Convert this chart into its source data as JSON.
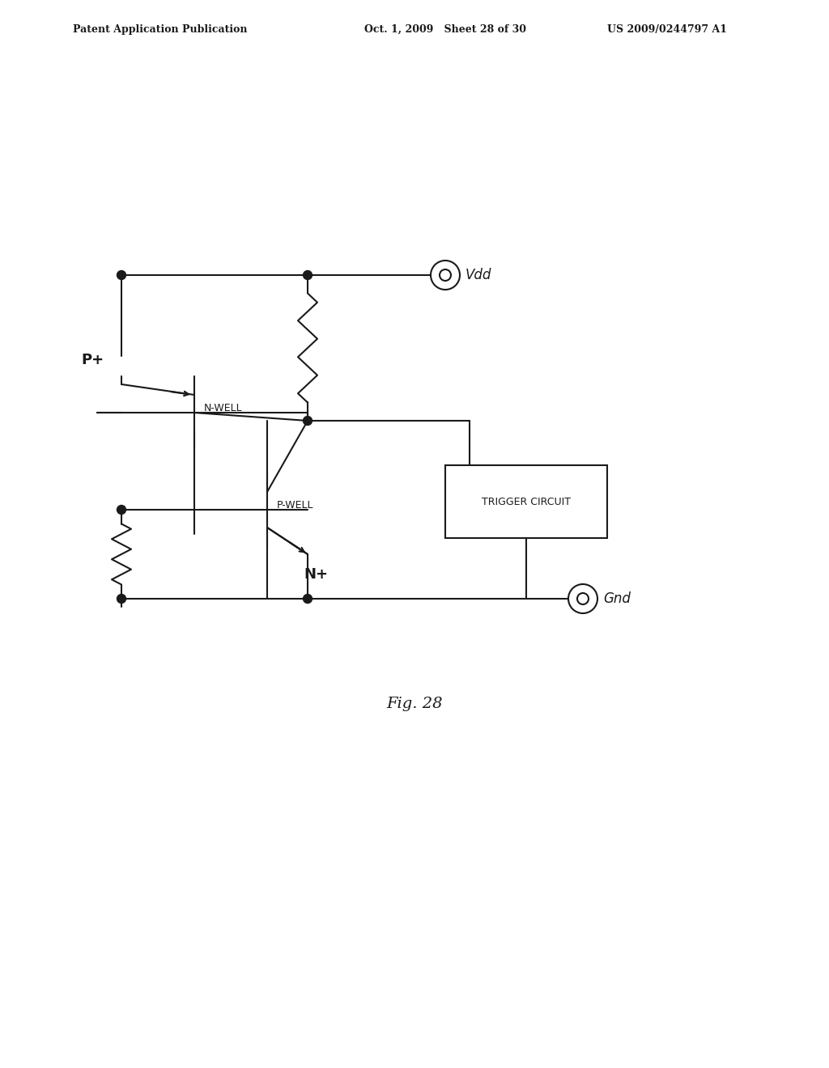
{
  "bg_color": "#ffffff",
  "line_color": "#1a1a1a",
  "header_left": "Patent Application Publication",
  "header_mid": "Oct. 1, 2009   Sheet 28 of 30",
  "header_right": "US 2009/0244797 A1",
  "fig_label": "Fig. 28",
  "vdd_label": "Vdd",
  "gnd_label": "Gnd",
  "pplus_label": "P+",
  "nplus_label": "N+",
  "nwell_label": "N-WELL",
  "pwell_label": "P-WELL",
  "trigger_label": "TRIGGER CIRCUIT"
}
